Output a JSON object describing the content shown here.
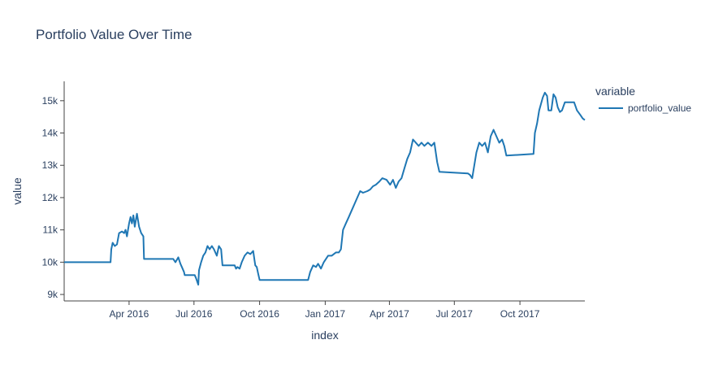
{
  "chart_data": {
    "type": "line",
    "title": "Portfolio Value Over Time",
    "xlabel": "index",
    "ylabel": "value",
    "legend_title": "variable",
    "legend_placement": "right",
    "grid": false,
    "x_range": [
      "2016-01-01",
      "2017-12-31"
    ],
    "ylim": [
      8800,
      15600
    ],
    "x_ticks": [
      {
        "date": "2016-04-01",
        "label": "Apr 2016"
      },
      {
        "date": "2016-07-01",
        "label": "Jul 2016"
      },
      {
        "date": "2016-10-01",
        "label": "Oct 2016"
      },
      {
        "date": "2017-01-01",
        "label": "Jan 2017"
      },
      {
        "date": "2017-04-01",
        "label": "Apr 2017"
      },
      {
        "date": "2017-07-01",
        "label": "Jul 2017"
      },
      {
        "date": "2017-10-01",
        "label": "Oct 2017"
      }
    ],
    "y_ticks": [
      {
        "value": 9000,
        "label": "9k"
      },
      {
        "value": 10000,
        "label": "10k"
      },
      {
        "value": 11000,
        "label": "11k"
      },
      {
        "value": 12000,
        "label": "12k"
      },
      {
        "value": 13000,
        "label": "13k"
      },
      {
        "value": 14000,
        "label": "14k"
      },
      {
        "value": 15000,
        "label": "15k"
      }
    ],
    "series": [
      {
        "name": "portfolio_value",
        "color": "#1f77b4",
        "points": [
          [
            "2016-01-01",
            10000
          ],
          [
            "2016-03-06",
            10000
          ],
          [
            "2016-03-07",
            10400
          ],
          [
            "2016-03-09",
            10600
          ],
          [
            "2016-03-12",
            10500
          ],
          [
            "2016-03-15",
            10550
          ],
          [
            "2016-03-18",
            10900
          ],
          [
            "2016-03-22",
            10950
          ],
          [
            "2016-03-25",
            10900
          ],
          [
            "2016-03-27",
            11000
          ],
          [
            "2016-03-29",
            10800
          ],
          [
            "2016-04-01",
            11200
          ],
          [
            "2016-04-03",
            11400
          ],
          [
            "2016-04-05",
            11200
          ],
          [
            "2016-04-07",
            11450
          ],
          [
            "2016-04-09",
            11100
          ],
          [
            "2016-04-12",
            11500
          ],
          [
            "2016-04-15",
            11100
          ],
          [
            "2016-04-18",
            10900
          ],
          [
            "2016-04-21",
            10800
          ],
          [
            "2016-04-22",
            10100
          ],
          [
            "2016-06-02",
            10100
          ],
          [
            "2016-06-05",
            10000
          ],
          [
            "2016-06-09",
            10150
          ],
          [
            "2016-06-12",
            9950
          ],
          [
            "2016-06-14",
            9850
          ],
          [
            "2016-06-17",
            9700
          ],
          [
            "2016-06-18",
            9600
          ],
          [
            "2016-07-02",
            9600
          ],
          [
            "2016-07-04",
            9500
          ],
          [
            "2016-07-07",
            9300
          ],
          [
            "2016-07-08",
            9750
          ],
          [
            "2016-07-11",
            10000
          ],
          [
            "2016-07-14",
            10200
          ],
          [
            "2016-07-17",
            10300
          ],
          [
            "2016-07-20",
            10500
          ],
          [
            "2016-07-23",
            10400
          ],
          [
            "2016-07-26",
            10500
          ],
          [
            "2016-07-29",
            10400
          ],
          [
            "2016-08-02",
            10200
          ],
          [
            "2016-08-05",
            10500
          ],
          [
            "2016-08-08",
            10400
          ],
          [
            "2016-08-10",
            9900
          ],
          [
            "2016-08-27",
            9900
          ],
          [
            "2016-08-29",
            9800
          ],
          [
            "2016-08-31",
            9850
          ],
          [
            "2016-09-03",
            9800
          ],
          [
            "2016-09-06",
            10000
          ],
          [
            "2016-09-10",
            10200
          ],
          [
            "2016-09-14",
            10300
          ],
          [
            "2016-09-18",
            10250
          ],
          [
            "2016-09-22",
            10350
          ],
          [
            "2016-09-24",
            10050
          ],
          [
            "2016-09-25",
            9900
          ],
          [
            "2016-09-27",
            9850
          ],
          [
            "2016-09-29",
            9650
          ],
          [
            "2016-10-01",
            9450
          ],
          [
            "2016-12-08",
            9450
          ],
          [
            "2016-12-11",
            9700
          ],
          [
            "2016-12-15",
            9900
          ],
          [
            "2016-12-19",
            9850
          ],
          [
            "2016-12-22",
            9950
          ],
          [
            "2016-12-26",
            9800
          ],
          [
            "2016-12-30",
            10000
          ],
          [
            "2017-01-05",
            10200
          ],
          [
            "2017-01-10",
            10200
          ],
          [
            "2017-01-16",
            10300
          ],
          [
            "2017-01-20",
            10300
          ],
          [
            "2017-01-23",
            10400
          ],
          [
            "2017-01-26",
            11000
          ],
          [
            "2017-01-30",
            11200
          ],
          [
            "2017-02-03",
            11400
          ],
          [
            "2017-02-07",
            11600
          ],
          [
            "2017-02-11",
            11800
          ],
          [
            "2017-02-15",
            12000
          ],
          [
            "2017-02-19",
            12200
          ],
          [
            "2017-02-23",
            12150
          ],
          [
            "2017-03-01",
            12200
          ],
          [
            "2017-03-05",
            12250
          ],
          [
            "2017-03-09",
            12350
          ],
          [
            "2017-03-13",
            12400
          ],
          [
            "2017-03-18",
            12500
          ],
          [
            "2017-03-22",
            12600
          ],
          [
            "2017-03-28",
            12550
          ],
          [
            "2017-04-02",
            12400
          ],
          [
            "2017-04-06",
            12550
          ],
          [
            "2017-04-10",
            12300
          ],
          [
            "2017-04-14",
            12500
          ],
          [
            "2017-04-18",
            12600
          ],
          [
            "2017-04-22",
            12900
          ],
          [
            "2017-04-26",
            13200
          ],
          [
            "2017-04-30",
            13400
          ],
          [
            "2017-05-04",
            13800
          ],
          [
            "2017-05-08",
            13700
          ],
          [
            "2017-05-12",
            13600
          ],
          [
            "2017-05-16",
            13700
          ],
          [
            "2017-05-20",
            13600
          ],
          [
            "2017-05-25",
            13700
          ],
          [
            "2017-05-30",
            13600
          ],
          [
            "2017-06-03",
            13700
          ],
          [
            "2017-06-07",
            13100
          ],
          [
            "2017-06-10",
            12800
          ],
          [
            "2017-07-20",
            12750
          ],
          [
            "2017-07-23",
            12700
          ],
          [
            "2017-07-26",
            12600
          ],
          [
            "2017-08-01",
            13400
          ],
          [
            "2017-08-05",
            13700
          ],
          [
            "2017-08-09",
            13600
          ],
          [
            "2017-08-13",
            13700
          ],
          [
            "2017-08-17",
            13400
          ],
          [
            "2017-08-21",
            13900
          ],
          [
            "2017-08-25",
            14100
          ],
          [
            "2017-08-29",
            13900
          ],
          [
            "2017-09-02",
            13700
          ],
          [
            "2017-09-06",
            13800
          ],
          [
            "2017-09-09",
            13600
          ],
          [
            "2017-09-12",
            13300
          ],
          [
            "2017-10-20",
            13350
          ],
          [
            "2017-10-22",
            14000
          ],
          [
            "2017-10-25",
            14300
          ],
          [
            "2017-10-28",
            14700
          ],
          [
            "2017-11-02",
            15100
          ],
          [
            "2017-11-05",
            15250
          ],
          [
            "2017-11-08",
            15150
          ],
          [
            "2017-11-10",
            14700
          ],
          [
            "2017-11-14",
            14700
          ],
          [
            "2017-11-17",
            15200
          ],
          [
            "2017-11-20",
            15100
          ],
          [
            "2017-11-23",
            14800
          ],
          [
            "2017-11-26",
            14650
          ],
          [
            "2017-11-29",
            14700
          ],
          [
            "2017-12-03",
            14950
          ],
          [
            "2017-12-10",
            14950
          ],
          [
            "2017-12-16",
            14950
          ],
          [
            "2017-12-20",
            14700
          ],
          [
            "2017-12-25",
            14550
          ],
          [
            "2017-12-28",
            14450
          ],
          [
            "2017-12-31",
            14400
          ]
        ]
      }
    ]
  }
}
